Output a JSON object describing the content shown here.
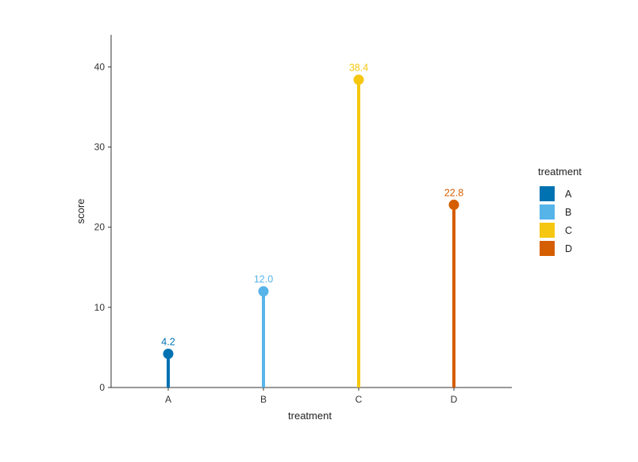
{
  "chart_data": {
    "type": "lollipop",
    "title": "",
    "xlabel": "treatment",
    "ylabel": "score",
    "categories": [
      "A",
      "B",
      "C",
      "D"
    ],
    "values": [
      4.2,
      12.0,
      38.4,
      22.8
    ],
    "value_labels": [
      "4.2",
      "12.0",
      "38.4",
      "22.8"
    ],
    "colors": [
      "#0072B2",
      "#56B4E9",
      "#F5C710",
      "#D55E00"
    ],
    "ylim": [
      0,
      44
    ],
    "yticks": [
      0,
      10,
      20,
      30,
      40
    ],
    "grid": false,
    "legend": {
      "title": "treatment",
      "position": "right",
      "entries": [
        "A",
        "B",
        "C",
        "D"
      ]
    }
  }
}
